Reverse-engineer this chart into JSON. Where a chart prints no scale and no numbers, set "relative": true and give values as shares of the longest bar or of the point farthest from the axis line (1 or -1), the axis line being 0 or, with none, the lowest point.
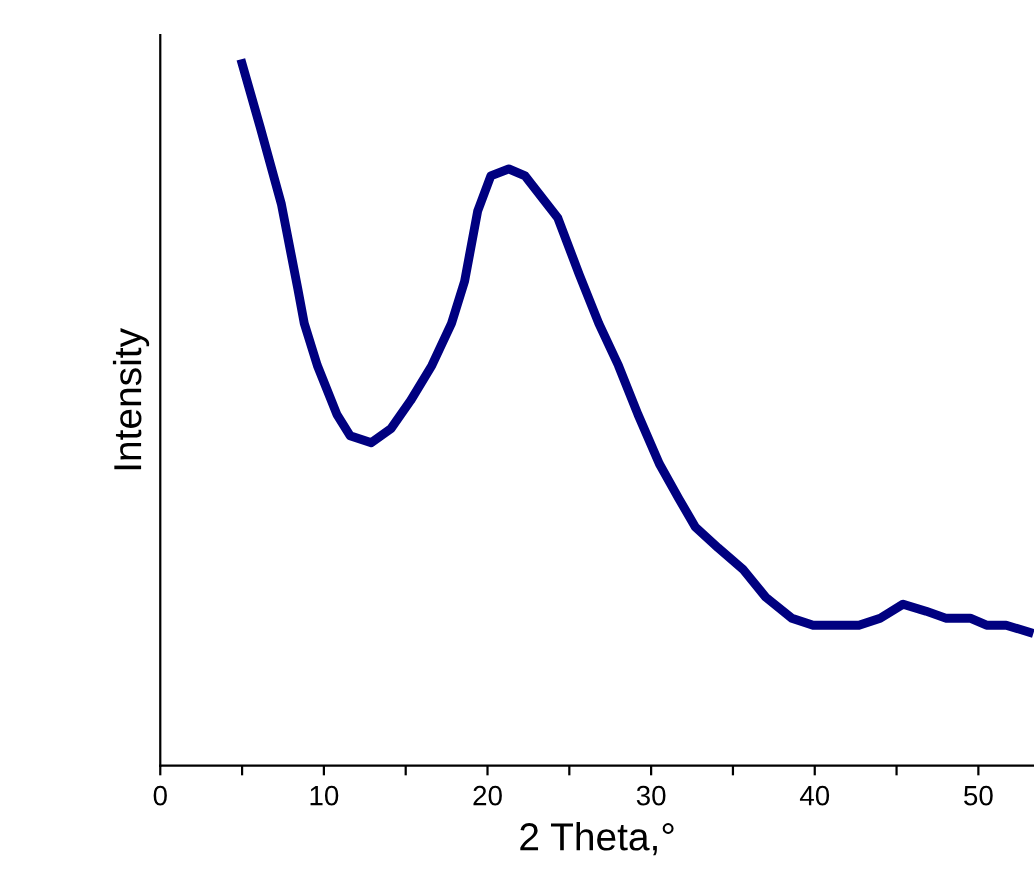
{
  "chart_data": {
    "type": "line",
    "relative": true,
    "xlabel": "2 Theta,°",
    "ylabel": "Intensity",
    "xlim": [
      0,
      53.4
    ],
    "xticks": [
      0,
      {
        "value": 5,
        "label": null
      },
      10,
      {
        "value": 15,
        "label": null
      },
      20,
      {
        "value": 25,
        "label": null
      },
      30,
      {
        "value": 35,
        "label": null
      },
      40,
      {
        "value": 45,
        "label": null
      },
      50
    ],
    "grid": false,
    "legend": false,
    "marker": "none",
    "line_style": "solid",
    "series": [
      {
        "color": "#000080",
        "x": [
          5,
          6.1,
          7.4,
          8.4,
          8.8,
          9.6,
          10.8,
          11.6,
          12.9,
          14.1,
          15.3,
          16.6,
          17.8,
          18.6,
          19.4,
          20.2,
          21.3,
          22.3,
          23.3,
          24.3,
          25.6,
          26.8,
          28.0,
          29.2,
          30.5,
          31.7,
          32.7,
          34.1,
          35.6,
          37.0,
          38.6,
          39.9,
          41.5,
          42.7,
          44.0,
          45.4,
          46.8,
          48.0,
          49.5,
          50.5,
          51.7,
          53.1
        ],
        "values": [
          1.0,
          0.91,
          0.8,
          0.68,
          0.63,
          0.57,
          0.5,
          0.47,
          0.46,
          0.48,
          0.52,
          0.57,
          0.63,
          0.69,
          0.79,
          0.84,
          0.85,
          0.84,
          0.81,
          0.78,
          0.7,
          0.63,
          0.57,
          0.5,
          0.43,
          0.38,
          0.34,
          0.31,
          0.28,
          0.24,
          0.21,
          0.2,
          0.2,
          0.2,
          0.21,
          0.23,
          0.22,
          0.21,
          0.21,
          0.2,
          0.2,
          0.19
        ]
      }
    ]
  }
}
